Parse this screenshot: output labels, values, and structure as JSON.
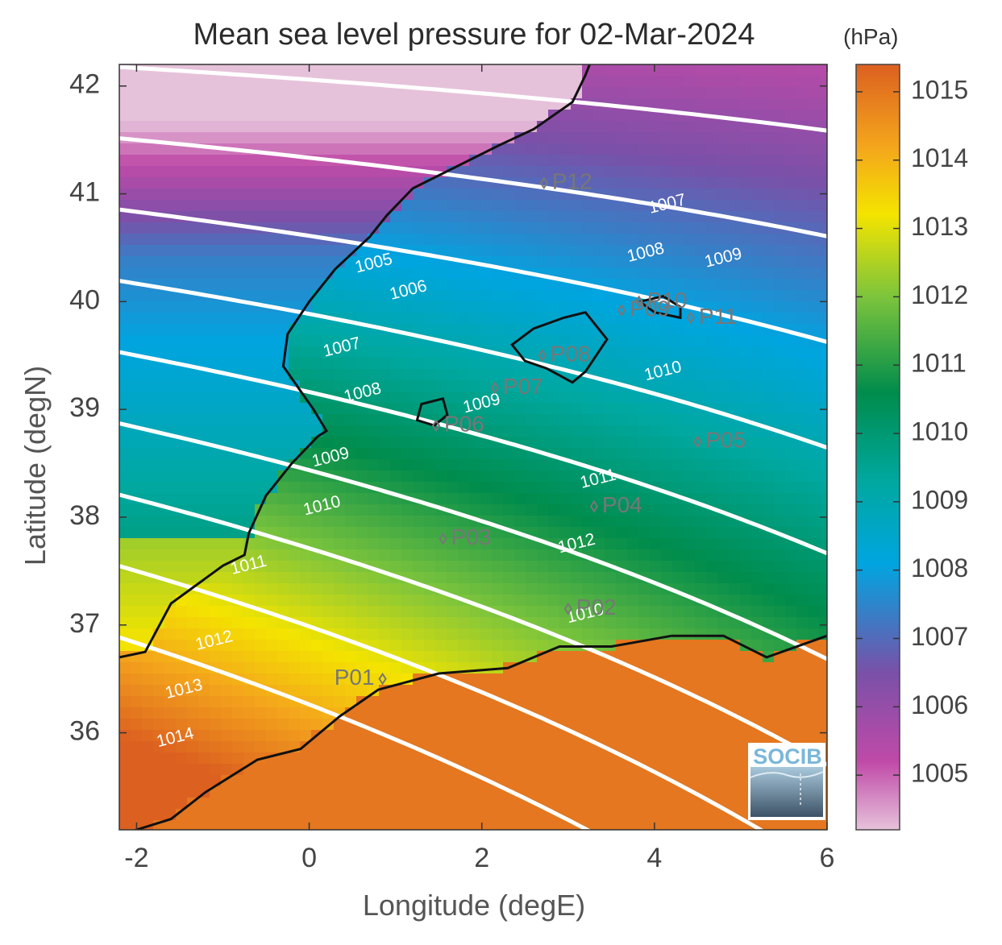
{
  "title": "Mean sea level pressure for 02-Mar-2024",
  "colorbar_unit": "(hPa)",
  "xlabel": "Longitude (degE)",
  "ylabel": "Latitude (degN)",
  "logo": "SOCIB",
  "colors": {
    "colormap": [
      "#e6c2da",
      "#c04aa8",
      "#7a50a8",
      "#00a5e0",
      "#00a8a0",
      "#008c4c",
      "#7cc43c",
      "#f4e400",
      "#f4a51c",
      "#dc6020"
    ],
    "contour": "#ffffff",
    "coast": "#111111",
    "station": "#777777"
  },
  "chart_data": {
    "type": "heatmap",
    "xlim": [
      -2.2,
      6
    ],
    "ylim": [
      35.1,
      42.2
    ],
    "x_ticks": [
      "-2",
      "0",
      "2",
      "4",
      "6"
    ],
    "y_ticks": [
      "36",
      "37",
      "38",
      "39",
      "40",
      "41",
      "42"
    ],
    "colorbar": {
      "range": [
        1004.2,
        1015.4
      ],
      "ticks": [
        "1005",
        "1006",
        "1007",
        "1008",
        "1009",
        "1010",
        "1011",
        "1012",
        "1013",
        "1014",
        "1015"
      ]
    },
    "contour_labels": [
      "1005",
      "1006",
      "1007",
      "1008",
      "1009",
      "1010",
      "1011",
      "1012",
      "1013",
      "1014"
    ],
    "contours": [
      {
        "level": "1005",
        "label_at": [
          0.75,
          40.35
        ]
      },
      {
        "level": "1006",
        "label_at": [
          1.15,
          40.1
        ]
      },
      {
        "level": "1007",
        "label_at": [
          0.38,
          39.57
        ]
      },
      {
        "level": "1007",
        "label_at": [
          4.15,
          40.9
        ]
      },
      {
        "level": "1008",
        "label_at": [
          0.62,
          39.15
        ]
      },
      {
        "level": "1008",
        "label_at": [
          3.9,
          40.45
        ]
      },
      {
        "level": "1009",
        "label_at": [
          0.25,
          38.55
        ]
      },
      {
        "level": "1009",
        "label_at": [
          2.0,
          39.05
        ]
      },
      {
        "level": "1009",
        "label_at": [
          4.8,
          40.4
        ]
      },
      {
        "level": "1010",
        "label_at": [
          0.15,
          38.1
        ]
      },
      {
        "level": "1010",
        "label_at": [
          4.1,
          39.35
        ]
      },
      {
        "level": "1010",
        "label_at": [
          3.2,
          37.1
        ]
      },
      {
        "level": "1011",
        "label_at": [
          -0.7,
          37.55
        ]
      },
      {
        "level": "1011",
        "label_at": [
          3.35,
          38.35
        ]
      },
      {
        "level": "1012",
        "label_at": [
          -1.1,
          36.85
        ]
      },
      {
        "level": "1012",
        "label_at": [
          3.1,
          37.75
        ]
      },
      {
        "level": "1013",
        "label_at": [
          -1.45,
          36.4
        ]
      },
      {
        "level": "1014",
        "label_at": [
          -1.55,
          35.95
        ]
      }
    ],
    "stations": [
      {
        "name": "P01",
        "lon": 0.85,
        "lat": 36.5
      },
      {
        "name": "P02",
        "lon": 3.0,
        "lat": 37.15
      },
      {
        "name": "P03",
        "lon": 1.55,
        "lat": 37.8
      },
      {
        "name": "P04",
        "lon": 3.3,
        "lat": 38.1
      },
      {
        "name": "P05",
        "lon": 4.5,
        "lat": 38.7
      },
      {
        "name": "P06",
        "lon": 1.47,
        "lat": 38.85
      },
      {
        "name": "P07",
        "lon": 2.15,
        "lat": 39.2
      },
      {
        "name": "P08",
        "lon": 2.7,
        "lat": 39.5
      },
      {
        "name": "P09",
        "lon": 3.62,
        "lat": 39.92
      },
      {
        "name": "P10",
        "lon": 3.82,
        "lat": 40.0
      },
      {
        "name": "P11",
        "lon": 4.42,
        "lat": 39.85
      },
      {
        "name": "P12",
        "lon": 2.72,
        "lat": 41.1
      }
    ]
  }
}
